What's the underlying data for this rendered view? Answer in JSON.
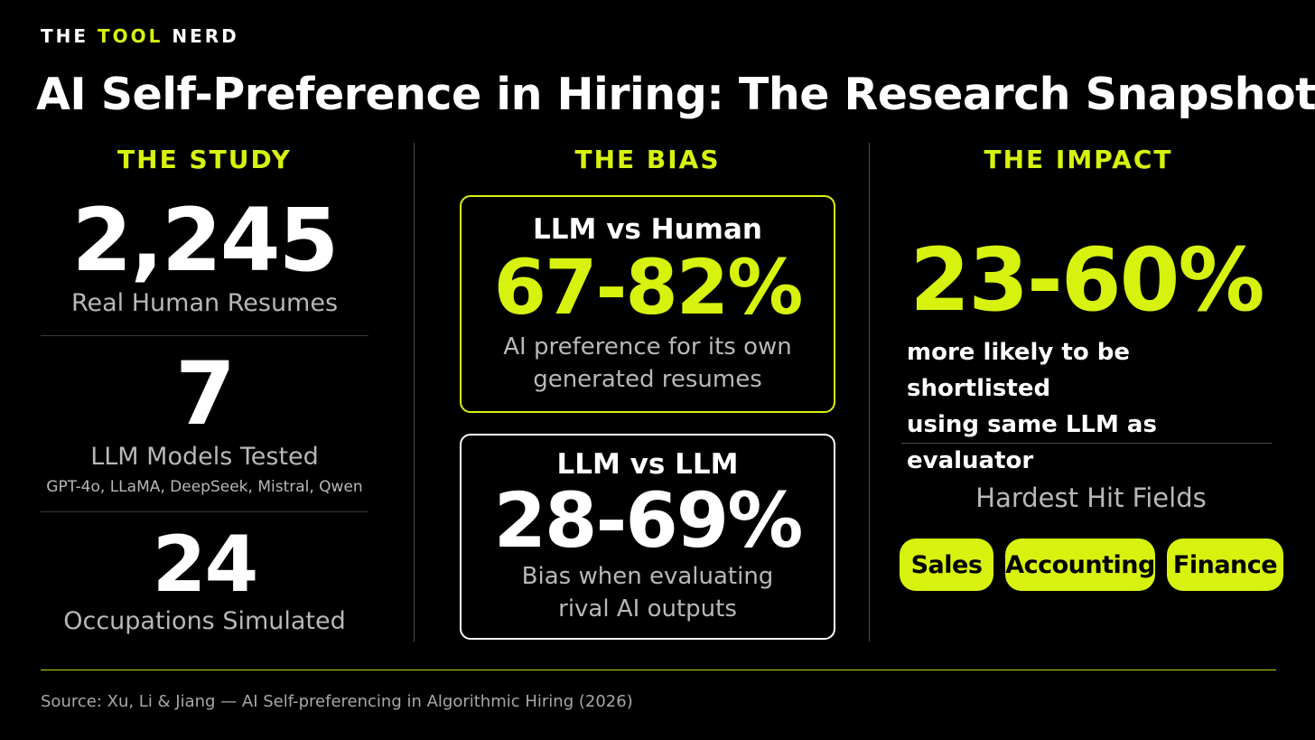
{
  "brand": {
    "part1": "THE",
    "part2": "TOOL",
    "part3": "NERD"
  },
  "title": "AI Self-Preference in Hiring: The Research Snapshot",
  "study": {
    "heading": "THE STUDY",
    "resumes": {
      "value": "2,245",
      "label": "Real Human Resumes"
    },
    "models": {
      "value": "7",
      "label": "LLM Models Tested",
      "sublabel": "GPT-4o, LLaMA, DeepSeek, Mistral, Qwen"
    },
    "occupations": {
      "value": "24",
      "label": "Occupations Simulated"
    }
  },
  "bias": {
    "heading": "THE BIAS",
    "card1": {
      "head": "LLM vs Human",
      "value": "67-82%",
      "line1": "AI preference for its own",
      "line2": "generated resumes"
    },
    "card2": {
      "head": "LLM vs LLM",
      "value": "28-69%",
      "line1": "Bias when evaluating",
      "line2": "rival AI outputs"
    }
  },
  "impact": {
    "heading": "THE IMPACT",
    "value": "23-60%",
    "line1": "more likely to be shortlisted",
    "line2": "using same LLM as evaluator",
    "fields_heading": "Hardest Hit Fields",
    "fields": [
      "Sales",
      "Accounting",
      "Finance"
    ]
  },
  "source": "Source: Xu, Li & Jiang — AI Self-preferencing in Algorithmic Hiring (2026)",
  "colors": {
    "accent": "#d7f20f",
    "background": "#000000",
    "text": "#ffffff",
    "muted": "#b8b8b8"
  }
}
